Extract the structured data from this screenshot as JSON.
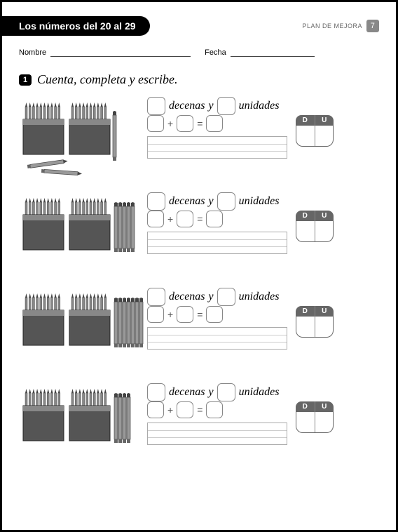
{
  "header": {
    "title": "Los números del 20 al 29",
    "plan_label": "PLAN DE MEJORA",
    "page_number": "7"
  },
  "fields": {
    "name_label": "Nombre",
    "date_label": "Fecha"
  },
  "instruction": {
    "number": "1",
    "text": "Cuenta, completa y escribe."
  },
  "labels": {
    "decenas": "decenas",
    "y": "y",
    "unidades": "unidades",
    "D": "D",
    "U": "U",
    "plus": "+",
    "equals": "="
  },
  "exercises": [
    {
      "loose_pencils": 3,
      "arrangement": "scattered"
    },
    {
      "loose_pencils": 5,
      "arrangement": "vertical"
    },
    {
      "loose_pencils": 7,
      "arrangement": "vertical"
    },
    {
      "loose_pencils": 4,
      "arrangement": "vertical"
    }
  ],
  "style": {
    "pencil_box_fill": "#555555",
    "pencil_box_top": "#888888",
    "pencil_stroke": "#444444",
    "box_border": "#888888",
    "du_bg": "#666666",
    "text_color": "#333333"
  }
}
